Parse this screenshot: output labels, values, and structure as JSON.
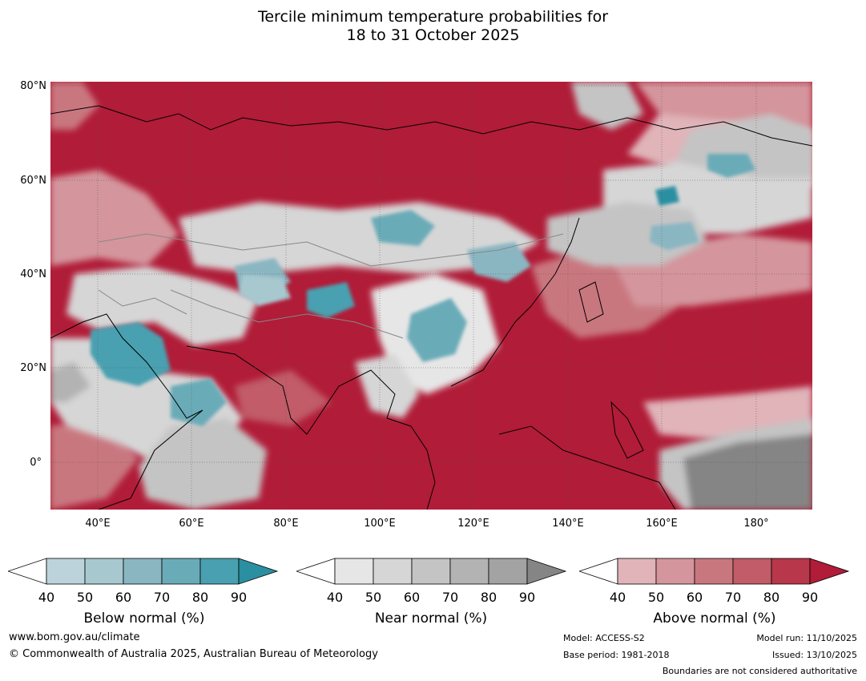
{
  "title": {
    "line1": "Tercile minimum temperature probabilities for",
    "line2": "18 to 31 October 2025"
  },
  "axes": {
    "lat_labels": [
      "80°N",
      "60°N",
      "40°N",
      "20°N",
      "0°"
    ],
    "lon_labels": [
      "40°E",
      "60°E",
      "80°E",
      "100°E",
      "120°E",
      "140°E",
      "160°E",
      "180°"
    ]
  },
  "colorbars": [
    {
      "label": "Below normal (%)",
      "ticks": [
        "40",
        "50",
        "60",
        "70",
        "80",
        "90"
      ],
      "colors": [
        "#ffffff",
        "#bdd3db",
        "#a7c8cf",
        "#8ab6c2",
        "#6aabb8",
        "#48a0b0",
        "#2a8fa1"
      ]
    },
    {
      "label": "Near normal (%)",
      "ticks": [
        "40",
        "50",
        "60",
        "70",
        "80",
        "90"
      ],
      "colors": [
        "#ffffff",
        "#e6e6e6",
        "#d6d6d6",
        "#c4c4c4",
        "#b3b3b3",
        "#a3a3a3",
        "#858585"
      ]
    },
    {
      "label": "Above normal (%)",
      "ticks": [
        "40",
        "50",
        "60",
        "70",
        "80",
        "90"
      ],
      "colors": [
        "#ffffff",
        "#e0b4b9",
        "#d4959c",
        "#c9777f",
        "#c15c68",
        "#b8374a",
        "#b11c38"
      ]
    }
  ],
  "footer": {
    "website": "www.bom.gov.au/climate",
    "copyright": "© Commonwealth of Australia 2025, Australian Bureau of Meteorology",
    "model": "Model: ACCESS-S2",
    "base_period": "Base period: 1981-2018",
    "model_run": "Model run: 11/10/2025",
    "issued": "Issued: 13/10/2025",
    "disclaimer": "Boundaries are not considered authoritative"
  },
  "colors": {
    "above_dominant": "#b11c38",
    "below_accent": "#2a8fa1",
    "near_accent": "#858585"
  }
}
